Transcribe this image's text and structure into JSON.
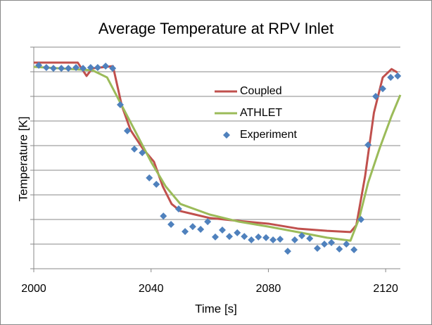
{
  "chart_data": {
    "type": "line",
    "title": "Average Temperature at RPV Inlet",
    "xlabel": "Time [s]",
    "ylabel": "Temperature [K]",
    "xlim": [
      2000,
      2125
    ],
    "xticks": [
      2000,
      2040,
      2080,
      2120
    ],
    "ylim": [
      0,
      9
    ],
    "yticks": [
      0,
      1,
      2,
      3,
      4,
      5,
      6,
      7,
      8,
      9
    ],
    "grid": true,
    "legend": "center",
    "series": [
      {
        "name": "Coupled",
        "color": "#c0504d",
        "style": "line",
        "x": [
          2000,
          2015,
          2018,
          2020,
          2027,
          2030,
          2033,
          2037,
          2041,
          2044,
          2047,
          2050,
          2055,
          2060,
          2070,
          2080,
          2090,
          2100,
          2108,
          2110,
          2113,
          2116,
          2119,
          2122,
          2124
        ],
        "values": [
          8.37,
          8.37,
          7.83,
          8.14,
          8.23,
          6.63,
          5.63,
          4.91,
          4.34,
          3.34,
          2.63,
          2.34,
          2.2,
          2.06,
          1.94,
          1.83,
          1.63,
          1.54,
          1.49,
          1.77,
          3.77,
          6.34,
          7.77,
          8.11,
          7.97
        ]
      },
      {
        "name": "ATHLET",
        "color": "#9bbb59",
        "style": "line",
        "x": [
          2000,
          2020,
          2025,
          2030,
          2035,
          2040,
          2045,
          2050,
          2060,
          2070,
          2080,
          2090,
          2100,
          2108,
          2111,
          2114,
          2118,
          2122,
          2125
        ],
        "values": [
          8.2,
          8.06,
          7.77,
          6.63,
          5.49,
          4.34,
          3.34,
          2.63,
          2.2,
          1.91,
          1.71,
          1.49,
          1.26,
          1.14,
          2.06,
          3.49,
          4.91,
          6.2,
          7.06
        ]
      },
      {
        "name": "Experiment",
        "color": "#4f81bd",
        "style": "marker",
        "x": [
          2001.7,
          2004.3,
          2006.7,
          2009.4,
          2011.8,
          2014.4,
          2016.8,
          2019.4,
          2021.8,
          2024.5,
          2026.9,
          2029.5,
          2031.9,
          2034.3,
          2037.0,
          2039.4,
          2041.8,
          2044.2,
          2046.8,
          2049.4,
          2051.6,
          2054.2,
          2056.9,
          2059.3,
          2061.9,
          2064.3,
          2066.7,
          2069.4,
          2071.8,
          2074.2,
          2076.6,
          2079.2,
          2081.6,
          2084.0,
          2086.6,
          2089.0,
          2091.4,
          2094.1,
          2096.7,
          2099.1,
          2101.5,
          2104.2,
          2106.6,
          2109.2,
          2111.6,
          2114.0,
          2116.6,
          2119.0,
          2121.7,
          2124.1
        ],
        "values": [
          8.26,
          8.17,
          8.14,
          8.14,
          8.14,
          8.17,
          8.14,
          8.17,
          8.17,
          8.23,
          8.14,
          6.66,
          5.6,
          4.86,
          4.71,
          3.69,
          3.43,
          2.14,
          1.8,
          2.43,
          1.51,
          1.71,
          1.6,
          1.91,
          1.29,
          1.57,
          1.31,
          1.46,
          1.31,
          1.17,
          1.29,
          1.26,
          1.17,
          1.2,
          0.71,
          1.17,
          1.34,
          1.23,
          0.83,
          1.0,
          1.06,
          0.8,
          1.0,
          0.77,
          2.0,
          5.03,
          7.0,
          7.31,
          7.77,
          7.83
        ]
      }
    ]
  }
}
